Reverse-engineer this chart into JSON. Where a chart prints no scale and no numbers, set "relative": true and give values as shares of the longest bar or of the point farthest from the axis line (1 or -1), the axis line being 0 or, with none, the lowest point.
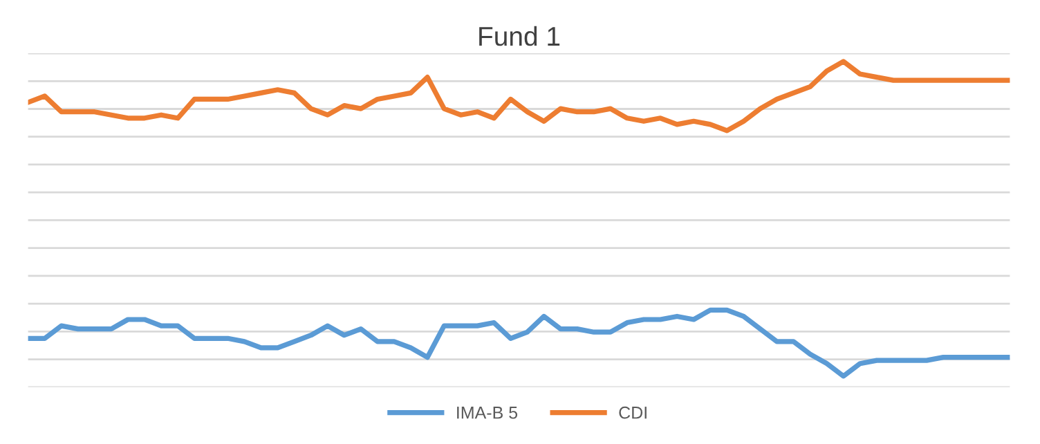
{
  "chart_data": {
    "type": "line",
    "title": "Fund 1",
    "relative": true,
    "grid": "y",
    "legend": "bottom",
    "marker": "none",
    "line_style": "solid",
    "categories": [
      null,
      null,
      null,
      null,
      null,
      null,
      null,
      null,
      null,
      null,
      null,
      null,
      null,
      null,
      null,
      null,
      null,
      null,
      null,
      null,
      null,
      null,
      null,
      null,
      null,
      null,
      null,
      null,
      null,
      null,
      null,
      null,
      null,
      null,
      null,
      null,
      null,
      null,
      null,
      null,
      null,
      null,
      null,
      null,
      null,
      null,
      null,
      null,
      null,
      null,
      null,
      null,
      null,
      null,
      null,
      null,
      null,
      null,
      null,
      null
    ],
    "series": [
      {
        "name": "IMA-B 5",
        "color": "#5b9bd5",
        "values": [
          0.12,
          0.12,
          0.16,
          0.15,
          0.15,
          0.15,
          0.18,
          0.18,
          0.16,
          0.16,
          0.12,
          0.12,
          0.12,
          0.11,
          0.09,
          0.09,
          0.11,
          0.13,
          0.16,
          0.13,
          0.15,
          0.11,
          0.11,
          0.09,
          0.06,
          0.16,
          0.16,
          0.16,
          0.17,
          0.12,
          0.14,
          0.19,
          0.15,
          0.15,
          0.14,
          0.14,
          0.17,
          0.18,
          0.18,
          0.19,
          0.18,
          0.21,
          0.21,
          0.19,
          0.15,
          0.11,
          0.11,
          0.07,
          0.04,
          0.0,
          0.04,
          0.05,
          0.05,
          0.05,
          0.05,
          0.06,
          0.06,
          0.06,
          0.06,
          0.06
        ]
      },
      {
        "name": "CDI",
        "color": "#ed7d31",
        "values": [
          0.87,
          0.89,
          0.84,
          0.84,
          0.84,
          0.83,
          0.82,
          0.82,
          0.83,
          0.82,
          0.88,
          0.88,
          0.88,
          0.89,
          0.9,
          0.91,
          0.9,
          0.85,
          0.83,
          0.86,
          0.85,
          0.88,
          0.89,
          0.9,
          0.95,
          0.85,
          0.83,
          0.84,
          0.82,
          0.88,
          0.84,
          0.81,
          0.85,
          0.84,
          0.84,
          0.85,
          0.82,
          0.81,
          0.82,
          0.8,
          0.81,
          0.8,
          0.78,
          0.81,
          0.85,
          0.88,
          0.9,
          0.92,
          0.97,
          1.0,
          0.96,
          0.95,
          0.94,
          0.94,
          0.94,
          0.94,
          0.94,
          0.94,
          0.94,
          0.94
        ]
      }
    ]
  }
}
